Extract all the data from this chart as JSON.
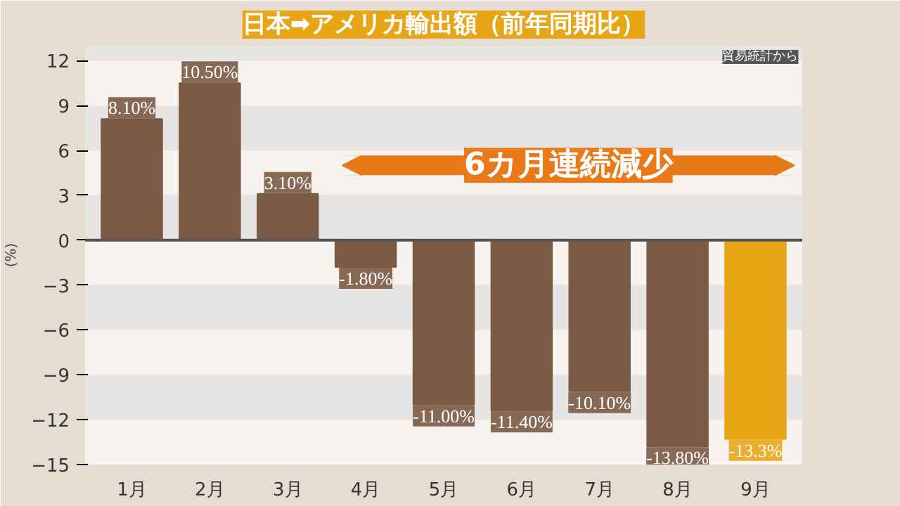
{
  "chart_data": {
    "type": "bar",
    "title": "日本➡アメリカ輸出額（前年同期比）",
    "ylabel": "(%)",
    "categories": [
      "1月",
      "2月",
      "3月",
      "4月",
      "5月",
      "6月",
      "7月",
      "8月",
      "9月"
    ],
    "values": [
      8.1,
      10.5,
      3.1,
      -1.8,
      -11.0,
      -11.4,
      -10.1,
      -13.8,
      -13.3
    ],
    "colors": [
      "#7b5b44",
      "#7b5b44",
      "#7b5b44",
      "#7b5b44",
      "#7b5b44",
      "#7b5b44",
      "#7b5b44",
      "#7b5b44",
      "#e8a617"
    ],
    "value_labels": [
      "8.10%",
      "10.50%",
      "3.10%",
      "-1.80%",
      "-11.00%",
      "-11.40%",
      "-10.10%",
      "-13.80%",
      "-13.3%"
    ],
    "ylim": [
      -15,
      13
    ],
    "yticks": [
      -15,
      -12,
      -9,
      -6,
      -3,
      0,
      3,
      6,
      9,
      12
    ],
    "grid": "y",
    "annotations": [
      "6カ月連続減少",
      "貿易統計から"
    ]
  }
}
